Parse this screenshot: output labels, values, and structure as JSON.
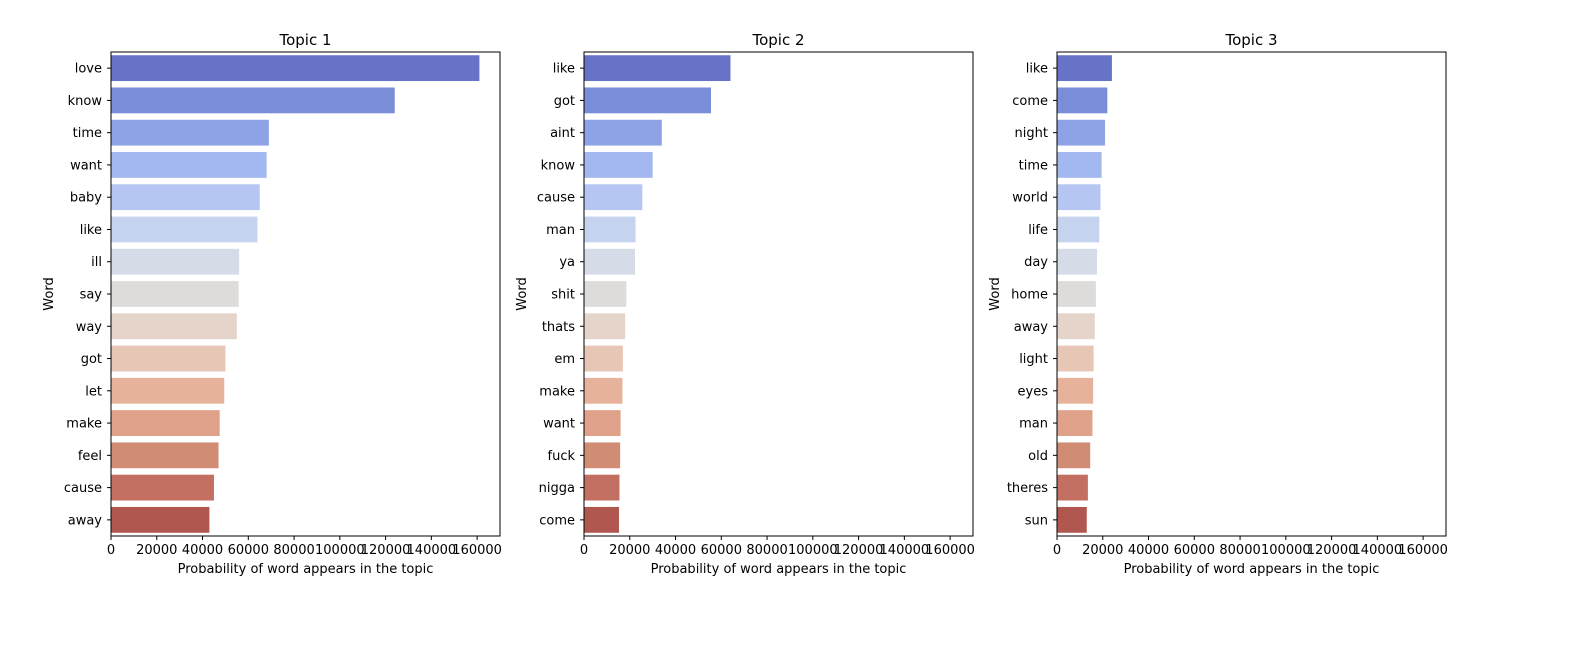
{
  "chart_data": [
    {
      "type": "bar",
      "orientation": "horizontal",
      "title": "Topic 1",
      "xlabel": "Probability of word appears in the topic",
      "ylabel": "Word",
      "xlim": [
        0,
        170000
      ],
      "xticks": [
        0,
        20000,
        40000,
        60000,
        80000,
        100000,
        120000,
        140000,
        160000
      ],
      "categories": [
        "love",
        "know",
        "time",
        "want",
        "baby",
        "like",
        "ill",
        "say",
        "way",
        "got",
        "let",
        "make",
        "feel",
        "cause",
        "away"
      ],
      "values": [
        161000,
        124000,
        69000,
        68000,
        65000,
        64000,
        56000,
        55800,
        55000,
        50000,
        49500,
        47500,
        47000,
        45000,
        43000
      ]
    },
    {
      "type": "bar",
      "orientation": "horizontal",
      "title": "Topic 2",
      "xlabel": "Probability of word appears in the topic",
      "ylabel": "Word",
      "xlim": [
        0,
        170000
      ],
      "xticks": [
        0,
        20000,
        40000,
        60000,
        80000,
        100000,
        120000,
        140000,
        160000
      ],
      "categories": [
        "like",
        "got",
        "aint",
        "know",
        "cause",
        "man",
        "ya",
        "shit",
        "thats",
        "em",
        "make",
        "want",
        "fuck",
        "nigga",
        "come"
      ],
      "values": [
        64000,
        55500,
        34000,
        30000,
        25500,
        22500,
        22300,
        18500,
        18000,
        17000,
        16800,
        16000,
        15800,
        15500,
        15300
      ]
    },
    {
      "type": "bar",
      "orientation": "horizontal",
      "title": "Topic 3",
      "xlabel": "Probability of word appears in the topic",
      "ylabel": "Word",
      "xlim": [
        0,
        170000
      ],
      "xticks": [
        0,
        20000,
        40000,
        60000,
        80000,
        100000,
        120000,
        140000,
        160000
      ],
      "categories": [
        "like",
        "come",
        "night",
        "time",
        "world",
        "life",
        "day",
        "home",
        "away",
        "light",
        "eyes",
        "man",
        "old",
        "theres",
        "sun"
      ],
      "values": [
        24000,
        22000,
        21000,
        19500,
        19000,
        18500,
        17500,
        17000,
        16500,
        16000,
        15800,
        15500,
        14500,
        13500,
        13000
      ]
    }
  ],
  "palette": [
    "#6773c6",
    "#7a8dd8",
    "#8ea3e6",
    "#a3b8f0",
    "#b5c6f2",
    "#c6d3ef",
    "#d5dbe7",
    "#dedcdb",
    "#e5d4ca",
    "#e7c6b5",
    "#e6b29b",
    "#dfa189",
    "#d18c74",
    "#c37062",
    "#b05750"
  ]
}
